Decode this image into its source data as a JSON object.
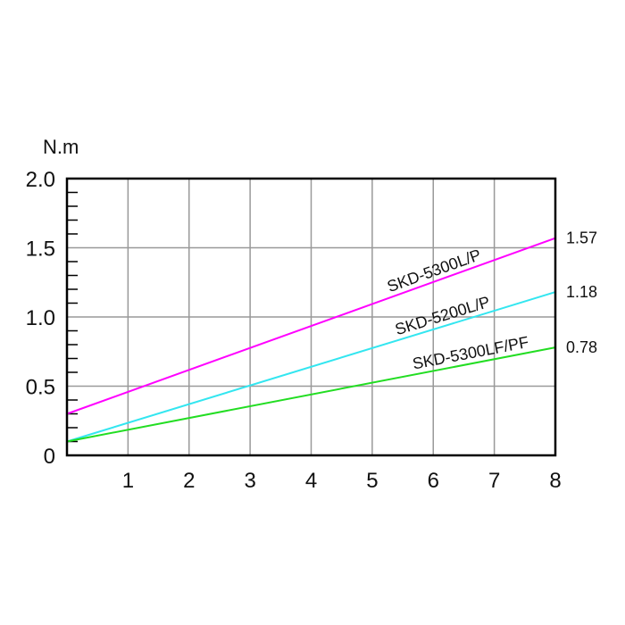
{
  "chart_data": {
    "type": "line",
    "title": "",
    "xlabel": "",
    "ylabel": "N.m",
    "xlim": [
      0,
      8
    ],
    "ylim": [
      0,
      2.0
    ],
    "x_ticks": [
      "1",
      "2",
      "3",
      "4",
      "5",
      "6",
      "7",
      "8"
    ],
    "y_ticks": [
      "0",
      "0.5",
      "1.0",
      "1.5",
      "2.0"
    ],
    "grid": true,
    "series": [
      {
        "name": "SKD-5300L/P",
        "color": "#ff00ff",
        "x": [
          0,
          8
        ],
        "y": [
          0.3,
          1.57
        ],
        "end_label": "1.57"
      },
      {
        "name": "SKD-5200L/P",
        "color": "#33e6f0",
        "x": [
          0,
          8
        ],
        "y": [
          0.1,
          1.18
        ],
        "end_label": "1.18"
      },
      {
        "name": "SKD-5300LF/PF",
        "color": "#22dd22",
        "x": [
          0,
          8
        ],
        "y": [
          0.1,
          0.78
        ],
        "end_label": "0.78"
      }
    ]
  }
}
